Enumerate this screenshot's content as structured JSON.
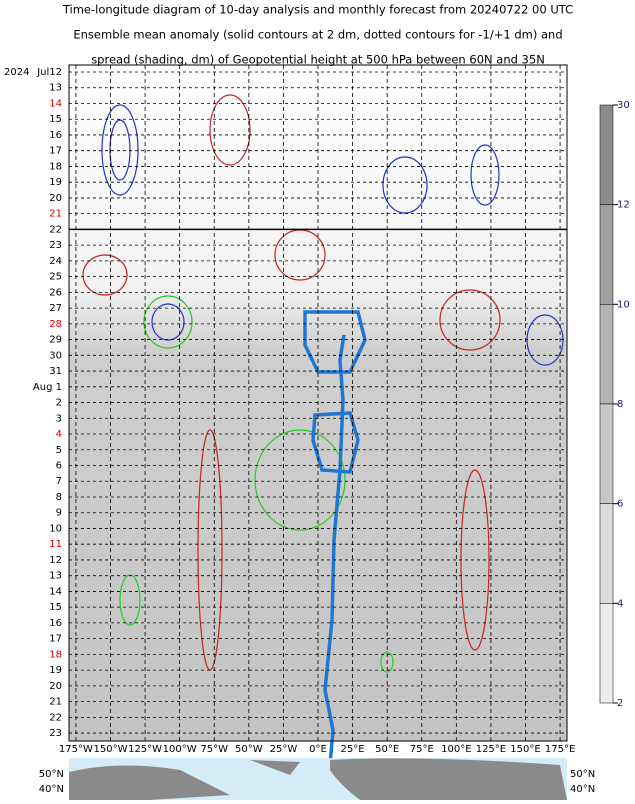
{
  "chart_data": {
    "type": "hovmoller",
    "title_lines": [
      "Time-longitude diagram of 10-day analysis and monthly forecast from 20240722 00 UTC",
      "Ensemble mean anomaly (solid contours at 2 dm, dotted contours for -1/+1 dm) and",
      "spread (shading, dm) of Geopotential height at 500 hPa between 60N and 35N"
    ],
    "year_label": "2024",
    "categories": [
      "Jul12",
      "13",
      "14",
      "15",
      "16",
      "17",
      "18",
      "19",
      "20",
      "21",
      "22",
      "23",
      "24",
      "25",
      "26",
      "27",
      "28",
      "29",
      "30",
      "31",
      "Aug 1",
      "2",
      "3",
      "4",
      "5",
      "6",
      "7",
      "8",
      "9",
      "10",
      "11",
      "12",
      "13",
      "14",
      "15",
      "16",
      "17",
      "18",
      "19",
      "20",
      "21",
      "22",
      "23"
    ],
    "highlight_category_indices": [
      2,
      9,
      16,
      23,
      30,
      37
    ],
    "highlight_color": "#e00000",
    "divider_category_index": 10,
    "xlim": [
      -180,
      180
    ],
    "xticks": [
      {
        "value": -175,
        "label": "175°W"
      },
      {
        "value": -150,
        "label": "150°W"
      },
      {
        "value": -125,
        "label": "125°W"
      },
      {
        "value": -100,
        "label": "100°W"
      },
      {
        "value": -75,
        "label": "75°W"
      },
      {
        "value": -50,
        "label": "50°W"
      },
      {
        "value": -25,
        "label": "25°W"
      },
      {
        "value": 0,
        "label": "0°E"
      },
      {
        "value": 25,
        "label": "25°E"
      },
      {
        "value": 50,
        "label": "50°E"
      },
      {
        "value": 75,
        "label": "75°E"
      },
      {
        "value": 100,
        "label": "100°E"
      },
      {
        "value": 125,
        "label": "125°E"
      },
      {
        "value": 150,
        "label": "150°E"
      },
      {
        "value": 175,
        "label": "175°E"
      }
    ],
    "grid": true,
    "colorbar_ticks": [
      30,
      12,
      10,
      8,
      6,
      4,
      2
    ],
    "map_lat_labels": [
      "50°N",
      "40°N"
    ]
  }
}
